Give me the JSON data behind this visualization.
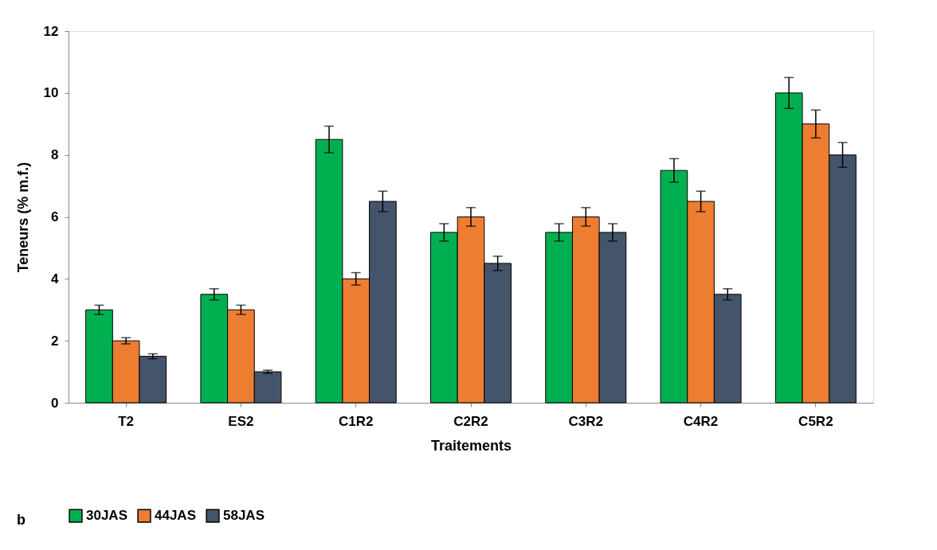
{
  "chart_data": {
    "type": "bar",
    "xlabel": "Traitements",
    "ylabel": "Teneurs (% m.f.)",
    "categories": [
      "T2",
      "ES2",
      "C1R2",
      "C2R2",
      "C3R2",
      "C4R2",
      "C5R2"
    ],
    "series": [
      {
        "name": "30JAS",
        "color": "#00b050",
        "values": [
          3,
          3.5,
          8.5,
          5.5,
          5.5,
          7.5,
          10
        ],
        "errors": [
          0.15,
          0.18,
          0.43,
          0.28,
          0.28,
          0.38,
          0.5
        ]
      },
      {
        "name": "44JAS",
        "color": "#ed7d31",
        "values": [
          2,
          3,
          4,
          6,
          6,
          6.5,
          9
        ],
        "errors": [
          0.1,
          0.15,
          0.2,
          0.3,
          0.3,
          0.33,
          0.45
        ]
      },
      {
        "name": "58JAS",
        "color": "#44546a",
        "values": [
          1.5,
          1,
          6.5,
          4.5,
          5.5,
          3.5,
          8
        ],
        "errors": [
          0.08,
          0.05,
          0.33,
          0.23,
          0.28,
          0.18,
          0.4
        ]
      }
    ],
    "ylim": [
      0,
      12
    ],
    "yticks": [
      0,
      2,
      4,
      6,
      8,
      10,
      12
    ],
    "grid": false,
    "legend": "bottom",
    "annotations": [
      "b"
    ]
  }
}
